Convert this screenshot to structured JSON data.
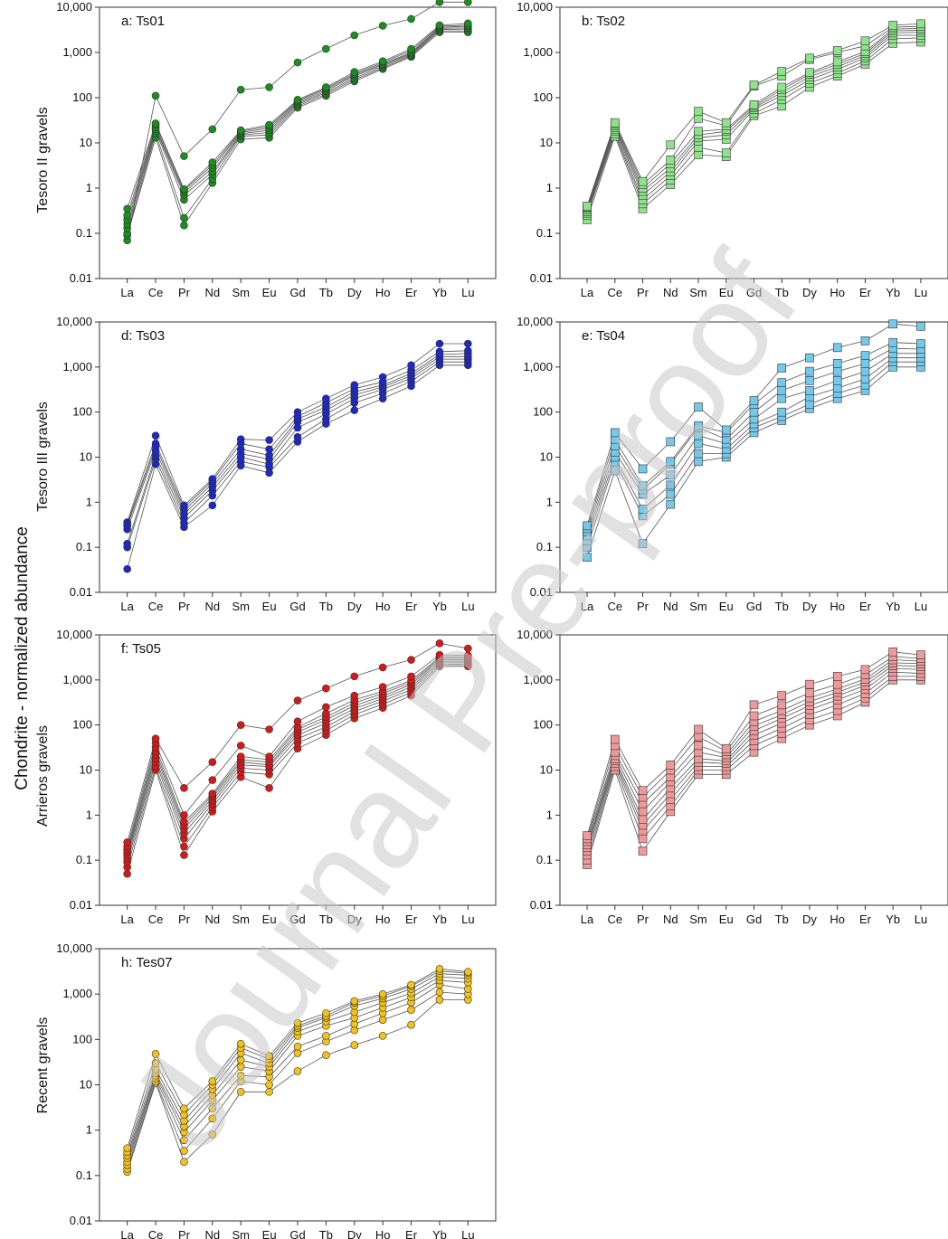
{
  "shared_ylabel": "Chondrite - normalized abundance",
  "watermark": "Journal Pre-proof",
  "row_labels": [
    "Tesoro II gravels",
    "Tesoro III gravels",
    "Arrieros gravels",
    "Recent  gravels"
  ],
  "chart_data": [
    {
      "type": "line",
      "title": "a: Ts01",
      "ylabel": "Tesoro II gravels",
      "yscale": "log",
      "ylim": [
        0.01,
        10000
      ],
      "yticks": [
        "0.01",
        "0.1",
        "1",
        "10",
        "100",
        "1,000",
        "10,000"
      ],
      "categories": [
        "La",
        "Ce",
        "Pr",
        "Nd",
        "Sm",
        "Eu",
        "Gd",
        "Tb",
        "Dy",
        "Ho",
        "Er",
        "Yb",
        "Lu"
      ],
      "marker": "circle",
      "color": "#17901c",
      "series": [
        {
          "values": [
            0.07,
            110,
            5.1,
            20,
            150,
            170,
            600,
            1200,
            2400,
            3900,
            5500,
            13000,
            13000
          ]
        },
        {
          "values": [
            0.09,
            13,
            0.15,
            1.3,
            12,
            13,
            60,
            110,
            230,
            430,
            800,
            2800,
            2800
          ]
        },
        {
          "values": [
            0.1,
            16,
            0.22,
            1.6,
            14,
            15,
            65,
            120,
            250,
            460,
            850,
            3000,
            3000
          ]
        },
        {
          "values": [
            0.13,
            18,
            0.55,
            2.0,
            15,
            17,
            70,
            130,
            270,
            500,
            900,
            3200,
            3300
          ]
        },
        {
          "values": [
            0.16,
            20,
            0.7,
            2.3,
            16,
            19,
            75,
            140,
            300,
            530,
            950,
            3400,
            3500
          ]
        },
        {
          "values": [
            0.2,
            22,
            0.8,
            2.8,
            17,
            21,
            80,
            150,
            320,
            560,
            1000,
            3600,
            3800
          ]
        },
        {
          "values": [
            0.25,
            25,
            0.9,
            3.2,
            18,
            23,
            85,
            160,
            340,
            600,
            1100,
            3800,
            4000
          ]
        },
        {
          "values": [
            0.35,
            27,
            0.95,
            3.7,
            19,
            25,
            90,
            170,
            370,
            640,
            1200,
            4000,
            4400
          ]
        }
      ]
    },
    {
      "type": "line",
      "title": "b: Ts02",
      "ylabel": "",
      "yscale": "log",
      "ylim": [
        0.01,
        10000
      ],
      "yticks": [
        "0.01",
        "0.1",
        "1",
        "10",
        "100",
        "1,000",
        "10,000"
      ],
      "categories": [
        "La",
        "Ce",
        "Pr",
        "Nd",
        "Sm",
        "Eu",
        "Gd",
        "Tb",
        "Dy",
        "Ho",
        "Er",
        "Yb",
        "Lu"
      ],
      "marker": "square",
      "color": "#8ee38a",
      "series": [
        {
          "values": [
            0.2,
            14,
            0.35,
            1.2,
            5.5,
            5,
            40,
            65,
            170,
            300,
            550,
            1600,
            1700
          ]
        },
        {
          "values": [
            0.25,
            16,
            0.45,
            1.5,
            8,
            6,
            45,
            90,
            210,
            350,
            650,
            2000,
            2100
          ]
        },
        {
          "values": [
            0.28,
            18,
            0.55,
            1.9,
            11,
            12,
            55,
            110,
            250,
            420,
            750,
            2400,
            2400
          ]
        },
        {
          "values": [
            0.3,
            20,
            0.7,
            2.3,
            13,
            15,
            60,
            130,
            290,
            480,
            850,
            2700,
            2800
          ]
        },
        {
          "values": [
            0.33,
            22,
            0.85,
            2.8,
            15,
            18,
            65,
            150,
            330,
            550,
            950,
            3000,
            3100
          ]
        },
        {
          "values": [
            0.36,
            24,
            1.0,
            3.5,
            18,
            20,
            70,
            170,
            360,
            620,
            1050,
            3300,
            3400
          ]
        },
        {
          "values": [
            0.38,
            26,
            1.2,
            4.2,
            35,
            24,
            180,
            300,
            700,
            1000,
            1400,
            3600,
            3800
          ]
        },
        {
          "values": [
            0.4,
            28,
            1.4,
            9,
            50,
            28,
            190,
            380,
            750,
            1100,
            1800,
            4000,
            4300
          ]
        }
      ]
    },
    {
      "type": "line",
      "title": "d: Ts03",
      "ylabel": "Tesoro III gravels",
      "yscale": "log",
      "ylim": [
        0.01,
        10000
      ],
      "yticks": [
        "0.01",
        "0.1",
        "1",
        "10",
        "100",
        "1,000",
        "10,000"
      ],
      "categories": [
        "La",
        "Ce",
        "Pr",
        "Nd",
        "Sm",
        "Eu",
        "Gd",
        "Tb",
        "Dy",
        "Ho",
        "Er",
        "Yb",
        "Lu"
      ],
      "marker": "circle",
      "color": "#1d28c8",
      "series": [
        {
          "values": [
            0.033,
            7,
            0.28,
            0.85,
            6.5,
            4.5,
            22,
            55,
            110,
            200,
            380,
            1100,
            1100
          ]
        },
        {
          "values": [
            0.1,
            9,
            0.35,
            1.4,
            8,
            6,
            28,
            70,
            160,
            260,
            480,
            1300,
            1300
          ]
        },
        {
          "values": [
            0.12,
            11,
            0.45,
            1.8,
            10,
            7,
            45,
            90,
            200,
            320,
            560,
            1500,
            1500
          ]
        },
        {
          "values": [
            0.25,
            14,
            0.55,
            2.2,
            12,
            9,
            60,
            110,
            240,
            360,
            640,
            1700,
            1700
          ]
        },
        {
          "values": [
            0.3,
            17,
            0.65,
            2.6,
            15,
            11,
            70,
            130,
            280,
            400,
            720,
            1900,
            2000
          ]
        },
        {
          "values": [
            0.33,
            20,
            0.75,
            3.0,
            20,
            15,
            80,
            160,
            330,
            470,
            850,
            2200,
            2300
          ]
        },
        {
          "values": [
            0.36,
            30,
            0.85,
            3.3,
            25,
            24,
            100,
            200,
            400,
            600,
            1100,
            3300,
            3300
          ]
        }
      ]
    },
    {
      "type": "line",
      "title": "e: Ts04",
      "ylabel": "",
      "yscale": "log",
      "ylim": [
        0.01,
        10000
      ],
      "yticks": [
        "0.01",
        "0.1",
        "1",
        "10",
        "100",
        "1,000",
        "10,000"
      ],
      "categories": [
        "La",
        "Ce",
        "Pr",
        "Nd",
        "Sm",
        "Eu",
        "Gd",
        "Tb",
        "Dy",
        "Ho",
        "Er",
        "Yb",
        "Lu"
      ],
      "marker": "square",
      "color": "#74c8ea",
      "series": [
        {
          "values": [
            0.06,
            5,
            0.12,
            0.9,
            8,
            10,
            35,
            65,
            120,
            200,
            300,
            1000,
            1000
          ]
        },
        {
          "values": [
            0.1,
            8,
            0.5,
            1.5,
            12,
            12,
            45,
            80,
            150,
            260,
            400,
            1300,
            1300
          ]
        },
        {
          "values": [
            0.14,
            10,
            0.7,
            2.4,
            20,
            15,
            55,
            100,
            220,
            340,
            550,
            1600,
            1600
          ]
        },
        {
          "values": [
            0.18,
            13,
            1.5,
            4,
            30,
            20,
            70,
            200,
            300,
            500,
            800,
            2000,
            2000
          ]
        },
        {
          "values": [
            0.22,
            18,
            1.9,
            7,
            45,
            25,
            100,
            300,
            500,
            800,
            1200,
            2600,
            2500
          ]
        },
        {
          "values": [
            0.26,
            25,
            2.3,
            8,
            50,
            35,
            150,
            450,
            800,
            1200,
            1800,
            3500,
            3300
          ]
        },
        {
          "values": [
            0.3,
            35,
            5.5,
            22,
            130,
            40,
            180,
            950,
            1600,
            2700,
            3800,
            9000,
            8000
          ]
        }
      ]
    },
    {
      "type": "line",
      "title": "f: Ts05",
      "ylabel": "Arrieros gravels",
      "yscale": "log",
      "ylim": [
        0.01,
        10000
      ],
      "yticks": [
        "0.01",
        "0.1",
        "1",
        "10",
        "100",
        "1,000",
        "10,000"
      ],
      "categories": [
        "La",
        "Ce",
        "Pr",
        "Nd",
        "Sm",
        "Eu",
        "Gd",
        "Tb",
        "Dy",
        "Ho",
        "Er",
        "Yb",
        "Lu"
      ],
      "marker": "circle",
      "color": "#d71818",
      "series": [
        {
          "values": [
            0.05,
            10,
            0.13,
            1.2,
            7,
            4,
            30,
            60,
            140,
            240,
            450,
            2000,
            2000
          ]
        },
        {
          "values": [
            0.07,
            12,
            0.2,
            1.5,
            9,
            8,
            40,
            75,
            170,
            290,
            530,
            2200,
            2200
          ]
        },
        {
          "values": [
            0.09,
            15,
            0.3,
            1.8,
            11,
            10,
            50,
            90,
            200,
            340,
            610,
            2400,
            2400
          ]
        },
        {
          "values": [
            0.11,
            18,
            0.4,
            2.1,
            13,
            12,
            60,
            110,
            230,
            390,
            700,
            2600,
            2600
          ]
        },
        {
          "values": [
            0.13,
            22,
            0.5,
            2.4,
            15,
            13,
            70,
            130,
            270,
            440,
            790,
            2800,
            2800
          ]
        },
        {
          "values": [
            0.15,
            26,
            0.6,
            2.7,
            17,
            15,
            80,
            150,
            310,
            500,
            880,
            3000,
            3000
          ]
        },
        {
          "values": [
            0.17,
            32,
            0.7,
            3.0,
            20,
            17,
            90,
            180,
            360,
            560,
            980,
            3200,
            3200
          ]
        },
        {
          "values": [
            0.2,
            40,
            1.0,
            6,
            35,
            20,
            120,
            250,
            450,
            700,
            1200,
            3600,
            3500
          ]
        },
        {
          "values": [
            0.25,
            50,
            4,
            15,
            100,
            80,
            350,
            650,
            1200,
            1900,
            2800,
            6500,
            5000
          ]
        }
      ]
    },
    {
      "type": "line",
      "title": "",
      "ylabel": "",
      "yscale": "log",
      "ylim": [
        0.01,
        10000
      ],
      "yticks": [
        "0.01",
        "0.1",
        "1",
        "10",
        "100",
        "1,000",
        "10,000"
      ],
      "categories": [
        "La",
        "Ce",
        "Pr",
        "Nd",
        "Sm",
        "Eu",
        "Gd",
        "Tb",
        "Dy",
        "Ho",
        "Er",
        "Yb",
        "Lu"
      ],
      "marker": "square",
      "color": "#f0999a",
      "series": [
        {
          "values": [
            0.08,
            10,
            0.16,
            1.2,
            8,
            8,
            25,
            50,
            100,
            160,
            320,
            1000,
            1000
          ]
        },
        {
          "values": [
            0.1,
            12,
            0.3,
            1.6,
            10,
            10,
            35,
            65,
            130,
            210,
            400,
            1200,
            1200
          ]
        },
        {
          "values": [
            0.13,
            14,
            0.45,
            2.2,
            12,
            12,
            45,
            85,
            170,
            280,
            500,
            1500,
            1400
          ]
        },
        {
          "values": [
            0.16,
            16,
            0.6,
            3.0,
            15,
            14,
            60,
            110,
            220,
            360,
            620,
            1800,
            1700
          ]
        },
        {
          "values": [
            0.19,
            18,
            0.8,
            4.0,
            18,
            16,
            75,
            140,
            270,
            440,
            760,
            2100,
            2000
          ]
        },
        {
          "values": [
            0.22,
            21,
            1.2,
            5.5,
            25,
            19,
            95,
            170,
            330,
            530,
            900,
            2400,
            2300
          ]
        },
        {
          "values": [
            0.26,
            25,
            1.8,
            7,
            35,
            22,
            120,
            210,
            400,
            630,
            1050,
            2800,
            2600
          ]
        },
        {
          "values": [
            0.3,
            35,
            2.5,
            10,
            55,
            26,
            160,
            280,
            520,
            800,
            1300,
            3300,
            3000
          ]
        },
        {
          "values": [
            0.35,
            48,
            3.5,
            13,
            80,
            30,
            280,
            450,
            800,
            1200,
            1700,
            4200,
            3600
          ]
        }
      ]
    },
    {
      "type": "line",
      "title": "h: Tes07",
      "ylabel": "Recent  gravels",
      "yscale": "log",
      "ylim": [
        0.01,
        10000
      ],
      "yticks": [
        "0.01",
        "0.1",
        "1",
        "10",
        "100",
        "1,000",
        "10,000"
      ],
      "categories": [
        "La",
        "Ce",
        "Pr",
        "Nd",
        "Sm",
        "Eu",
        "Gd",
        "Tb",
        "Dy",
        "Ho",
        "Er",
        "Yb",
        "Lu"
      ],
      "marker": "circle",
      "color": "#f3c21a",
      "series": [
        {
          "values": [
            0.12,
            11,
            0.2,
            0.8,
            7,
            7,
            20,
            45,
            75,
            120,
            210,
            750,
            750
          ]
        },
        {
          "values": [
            0.14,
            12,
            0.35,
            1.8,
            12,
            10,
            50,
            90,
            160,
            270,
            450,
            1100,
            1000
          ]
        },
        {
          "values": [
            0.17,
            14,
            0.6,
            3,
            16,
            15,
            70,
            120,
            220,
            380,
            650,
            1600,
            1300
          ]
        },
        {
          "values": [
            0.2,
            16,
            0.9,
            4.5,
            25,
            20,
            120,
            200,
            300,
            500,
            850,
            2000,
            1800
          ]
        },
        {
          "values": [
            0.24,
            18,
            1.2,
            6,
            35,
            25,
            150,
            250,
            400,
            650,
            1050,
            2400,
            2200
          ]
        },
        {
          "values": [
            0.28,
            22,
            1.6,
            8,
            50,
            30,
            180,
            300,
            550,
            800,
            1300,
            2800,
            2600
          ]
        },
        {
          "values": [
            0.33,
            30,
            2.2,
            10,
            65,
            37,
            200,
            330,
            650,
            900,
            1500,
            3200,
            2900
          ]
        },
        {
          "values": [
            0.4,
            48,
            3.0,
            12,
            80,
            43,
            230,
            380,
            700,
            1000,
            1600,
            3600,
            3100
          ]
        }
      ]
    }
  ]
}
